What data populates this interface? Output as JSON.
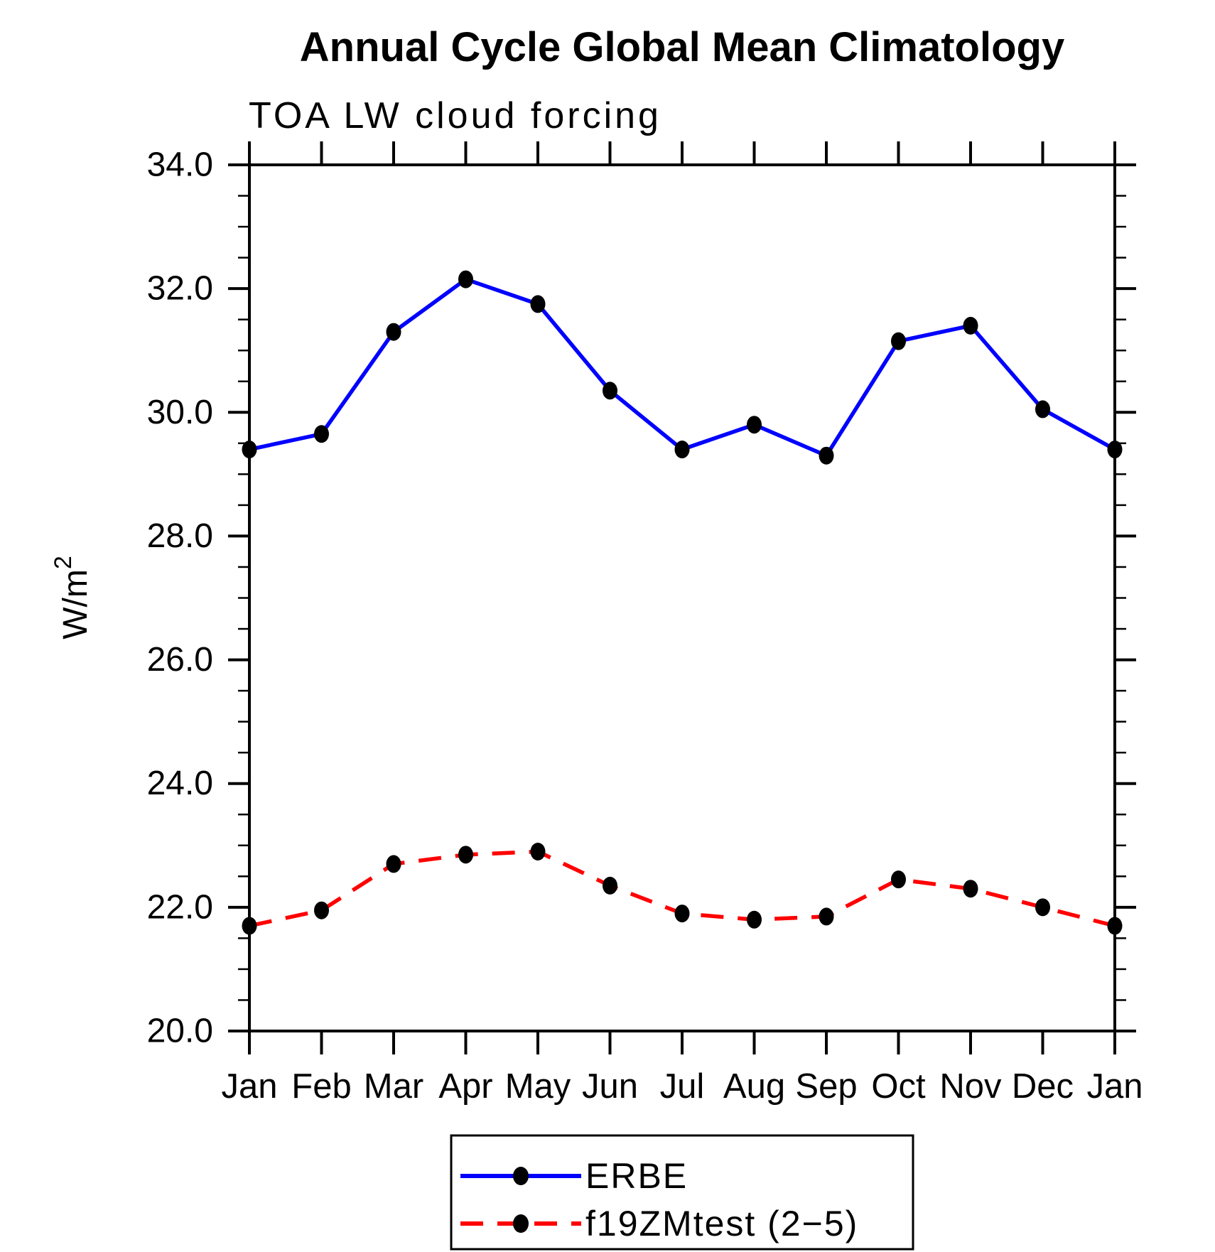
{
  "page": {
    "background_color": "#ffffff",
    "foreground_color": "#000000"
  },
  "chart_data": {
    "type": "line",
    "title": "Annual Cycle Global Mean Climatology",
    "subtitle": "TOA LW cloud forcing",
    "ylabel_base": "W/m",
    "ylabel_exponent": "2",
    "x_categories": [
      "Jan",
      "Feb",
      "Mar",
      "Apr",
      "May",
      "Jun",
      "Jul",
      "Aug",
      "Sep",
      "Oct",
      "Nov",
      "Dec",
      "Jan"
    ],
    "ylim": [
      20.0,
      34.0
    ],
    "y_minor_step": 0.5,
    "y_major_ticks": [
      20.0,
      22.0,
      24.0,
      26.0,
      28.0,
      30.0,
      32.0,
      34.0
    ],
    "y_major_tick_labels": [
      "20.0",
      "22.0",
      "24.0",
      "26.0",
      "28.0",
      "30.0",
      "32.0",
      "34.0"
    ],
    "grid": false,
    "legend_position": "bottom-center",
    "axis_color": "#000000",
    "marker_shape": "filled-circle",
    "series": [
      {
        "name": "ERBE",
        "color": "#0000ff",
        "style": "solid",
        "marker_color": "#000000",
        "values": [
          29.4,
          29.65,
          31.3,
          32.15,
          31.75,
          30.35,
          29.4,
          29.8,
          29.3,
          31.15,
          31.4,
          30.05,
          29.4
        ]
      },
      {
        "name": "f19ZMtest (2−5)",
        "color": "#ff0000",
        "style": "dashed",
        "marker_color": "#000000",
        "values": [
          21.7,
          21.95,
          22.7,
          22.85,
          22.9,
          22.35,
          21.9,
          21.8,
          21.85,
          22.45,
          22.3,
          22.0,
          21.7
        ]
      }
    ]
  }
}
